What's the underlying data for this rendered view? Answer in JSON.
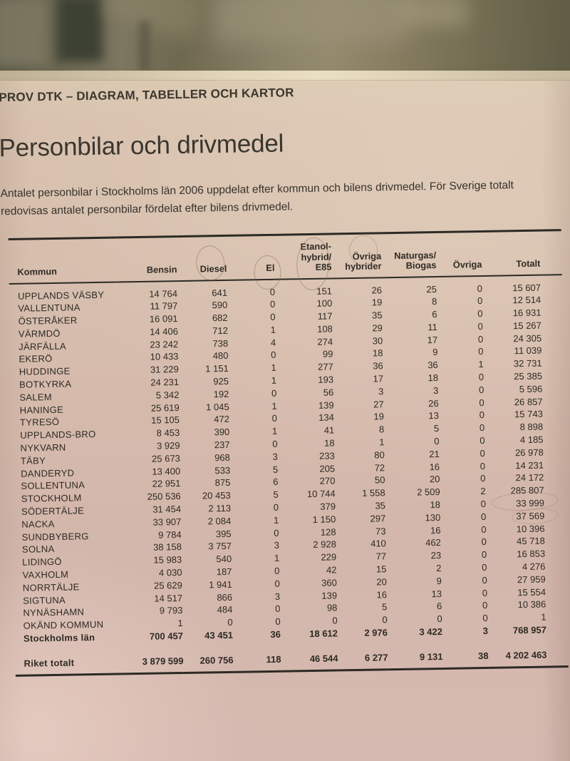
{
  "page": {
    "kicker": "PROV DTK – DIAGRAM, TABELLER OCH KARTOR",
    "title": "Personbilar och drivmedel",
    "description": "Antalet personbilar i Stockholms län 2006 uppdelat efter kommun och bilens drivmedel. För Sverige totalt redovisas antalet personbilar fördelat efter bilens drivmedel."
  },
  "table": {
    "columns": [
      {
        "id": "kommun",
        "lines": [
          "Kommun"
        ]
      },
      {
        "id": "bensin",
        "lines": [
          "Bensin"
        ]
      },
      {
        "id": "diesel",
        "lines": [
          "Diesel"
        ]
      },
      {
        "id": "el",
        "lines": [
          "El"
        ]
      },
      {
        "id": "etanol-hybrid-e85",
        "lines": [
          "Etanol-",
          "hybrid/",
          "E85"
        ]
      },
      {
        "id": "ovriga-hybrider",
        "lines": [
          "Övriga",
          "hybrider"
        ]
      },
      {
        "id": "naturgas-biogas",
        "lines": [
          "Naturgas/",
          "Biogas"
        ]
      },
      {
        "id": "ovriga",
        "lines": [
          "Övriga"
        ]
      },
      {
        "id": "totalt",
        "lines": [
          "Totalt"
        ]
      }
    ],
    "rows": [
      {
        "kommun": "UPPLANDS VÄSBY",
        "values": [
          "14 764",
          "641",
          "0",
          "151",
          "26",
          "25",
          "0",
          "15 607"
        ]
      },
      {
        "kommun": "VALLENTUNA",
        "values": [
          "11 797",
          "590",
          "0",
          "100",
          "19",
          "8",
          "0",
          "12 514"
        ]
      },
      {
        "kommun": "ÖSTERÅKER",
        "values": [
          "16 091",
          "682",
          "0",
          "117",
          "35",
          "6",
          "0",
          "16 931"
        ]
      },
      {
        "kommun": "VÄRMDÖ",
        "values": [
          "14 406",
          "712",
          "1",
          "108",
          "29",
          "11",
          "0",
          "15 267"
        ]
      },
      {
        "kommun": "JÄRFÄLLA",
        "values": [
          "23 242",
          "738",
          "4",
          "274",
          "30",
          "17",
          "0",
          "24 305"
        ]
      },
      {
        "kommun": "EKERÖ",
        "values": [
          "10 433",
          "480",
          "0",
          "99",
          "18",
          "9",
          "0",
          "11 039"
        ]
      },
      {
        "kommun": "HUDDINGE",
        "values": [
          "31 229",
          "1 151",
          "1",
          "277",
          "36",
          "36",
          "1",
          "32 731"
        ]
      },
      {
        "kommun": "BOTKYRKA",
        "values": [
          "24 231",
          "925",
          "1",
          "193",
          "17",
          "18",
          "0",
          "25 385"
        ]
      },
      {
        "kommun": "SALEM",
        "values": [
          "5 342",
          "192",
          "0",
          "56",
          "3",
          "3",
          "0",
          "5 596"
        ]
      },
      {
        "kommun": "HANINGE",
        "values": [
          "25 619",
          "1 045",
          "1",
          "139",
          "27",
          "26",
          "0",
          "26 857"
        ]
      },
      {
        "kommun": "TYRESÖ",
        "values": [
          "15 105",
          "472",
          "0",
          "134",
          "19",
          "13",
          "0",
          "15 743"
        ]
      },
      {
        "kommun": "UPPLANDS-BRO",
        "values": [
          "8 453",
          "390",
          "1",
          "41",
          "8",
          "5",
          "0",
          "8 898"
        ]
      },
      {
        "kommun": "NYKVARN",
        "values": [
          "3 929",
          "237",
          "0",
          "18",
          "1",
          "0",
          "0",
          "4 185"
        ]
      },
      {
        "kommun": "TÄBY",
        "values": [
          "25 673",
          "968",
          "3",
          "233",
          "80",
          "21",
          "0",
          "26 978"
        ]
      },
      {
        "kommun": "DANDERYD",
        "values": [
          "13 400",
          "533",
          "5",
          "205",
          "72",
          "16",
          "0",
          "14 231"
        ]
      },
      {
        "kommun": "SOLLENTUNA",
        "values": [
          "22 951",
          "875",
          "6",
          "270",
          "50",
          "20",
          "0",
          "24 172"
        ]
      },
      {
        "kommun": "STOCKHOLM",
        "values": [
          "250 536",
          "20 453",
          "5",
          "10 744",
          "1 558",
          "2 509",
          "2",
          "285 807"
        ]
      },
      {
        "kommun": "SÖDERTÄLJE",
        "values": [
          "31 454",
          "2 113",
          "0",
          "379",
          "35",
          "18",
          "0",
          "33 999"
        ]
      },
      {
        "kommun": "NACKA",
        "values": [
          "33 907",
          "2 084",
          "1",
          "1 150",
          "297",
          "130",
          "0",
          "37 569"
        ]
      },
      {
        "kommun": "SUNDBYBERG",
        "values": [
          "9 784",
          "395",
          "0",
          "128",
          "73",
          "16",
          "0",
          "10 396"
        ]
      },
      {
        "kommun": "SOLNA",
        "values": [
          "38 158",
          "3 757",
          "3",
          "2 928",
          "410",
          "462",
          "0",
          "45 718"
        ]
      },
      {
        "kommun": "LIDINGÖ",
        "values": [
          "15 983",
          "540",
          "1",
          "229",
          "77",
          "23",
          "0",
          "16 853"
        ]
      },
      {
        "kommun": "VAXHOLM",
        "values": [
          "4 030",
          "187",
          "0",
          "42",
          "15",
          "2",
          "0",
          "4 276"
        ]
      },
      {
        "kommun": "NORRTÄLJE",
        "values": [
          "25 629",
          "1 941",
          "0",
          "360",
          "20",
          "9",
          "0",
          "27 959"
        ]
      },
      {
        "kommun": "SIGTUNA",
        "values": [
          "14 517",
          "866",
          "3",
          "139",
          "16",
          "13",
          "0",
          "15 554"
        ]
      },
      {
        "kommun": "NYNÄSHAMN",
        "values": [
          "9 793",
          "484",
          "0",
          "98",
          "5",
          "6",
          "0",
          "10 386"
        ]
      },
      {
        "kommun": "OKÄND KOMMUN",
        "values": [
          "1",
          "0",
          "0",
          "0",
          "0",
          "0",
          "0",
          "1"
        ]
      }
    ],
    "summary_rows": [
      {
        "kommun": "Stockholms län",
        "values": [
          "700 457",
          "43 451",
          "36",
          "18 612",
          "2 976",
          "3 422",
          "3",
          "768 957"
        ],
        "style": "bold"
      },
      {
        "kommun": "Riket totalt",
        "values": [
          "3 879 599",
          "260 756",
          "118",
          "46 544",
          "6 277",
          "9 131",
          "38",
          "4 202 463"
        ],
        "style": "bold total-row"
      }
    ]
  },
  "annotations": {
    "pencil_marks": [
      "circle around Diesel header",
      "circle around El header",
      "oval around Etanol-hybrid/E85 header",
      "faint circle above Övriga hybrider header",
      "faint oval around 285 807",
      "faint oval around 33 999"
    ]
  },
  "colors": {
    "paper": "#d6bcae",
    "background_top": "#6f6852",
    "ink": "#2d2a24",
    "pencil": "rgba(128,110,90,0.5)"
  }
}
